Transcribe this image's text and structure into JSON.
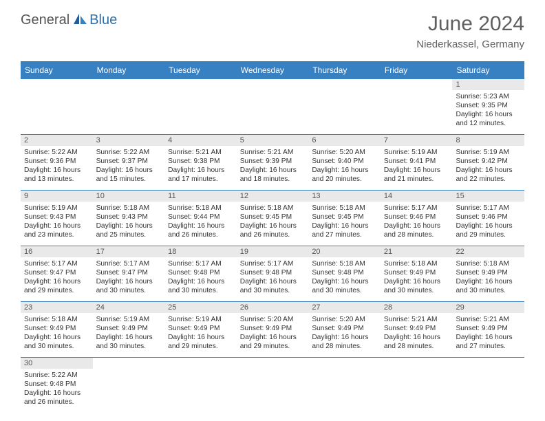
{
  "logo": {
    "text1": "General",
    "text2": "Blue"
  },
  "title": "June 2024",
  "subtitle": "Niederkassel, Germany",
  "colors": {
    "header_bg": "#3780c2",
    "header_text": "#ffffff",
    "daynum_bg": "#e9e9e9",
    "border": "#3780c2",
    "logo_gray": "#555555",
    "logo_blue": "#2f6fa8"
  },
  "weekdays": [
    "Sunday",
    "Monday",
    "Tuesday",
    "Wednesday",
    "Thursday",
    "Friday",
    "Saturday"
  ],
  "weeks": [
    {
      "nums": [
        "",
        "",
        "",
        "",
        "",
        "",
        "1"
      ],
      "cells": [
        null,
        null,
        null,
        null,
        null,
        null,
        {
          "sunrise": "Sunrise: 5:23 AM",
          "sunset": "Sunset: 9:35 PM",
          "daylight1": "Daylight: 16 hours",
          "daylight2": "and 12 minutes."
        }
      ]
    },
    {
      "nums": [
        "2",
        "3",
        "4",
        "5",
        "6",
        "7",
        "8"
      ],
      "cells": [
        {
          "sunrise": "Sunrise: 5:22 AM",
          "sunset": "Sunset: 9:36 PM",
          "daylight1": "Daylight: 16 hours",
          "daylight2": "and 13 minutes."
        },
        {
          "sunrise": "Sunrise: 5:22 AM",
          "sunset": "Sunset: 9:37 PM",
          "daylight1": "Daylight: 16 hours",
          "daylight2": "and 15 minutes."
        },
        {
          "sunrise": "Sunrise: 5:21 AM",
          "sunset": "Sunset: 9:38 PM",
          "daylight1": "Daylight: 16 hours",
          "daylight2": "and 17 minutes."
        },
        {
          "sunrise": "Sunrise: 5:21 AM",
          "sunset": "Sunset: 9:39 PM",
          "daylight1": "Daylight: 16 hours",
          "daylight2": "and 18 minutes."
        },
        {
          "sunrise": "Sunrise: 5:20 AM",
          "sunset": "Sunset: 9:40 PM",
          "daylight1": "Daylight: 16 hours",
          "daylight2": "and 20 minutes."
        },
        {
          "sunrise": "Sunrise: 5:19 AM",
          "sunset": "Sunset: 9:41 PM",
          "daylight1": "Daylight: 16 hours",
          "daylight2": "and 21 minutes."
        },
        {
          "sunrise": "Sunrise: 5:19 AM",
          "sunset": "Sunset: 9:42 PM",
          "daylight1": "Daylight: 16 hours",
          "daylight2": "and 22 minutes."
        }
      ]
    },
    {
      "nums": [
        "9",
        "10",
        "11",
        "12",
        "13",
        "14",
        "15"
      ],
      "cells": [
        {
          "sunrise": "Sunrise: 5:19 AM",
          "sunset": "Sunset: 9:43 PM",
          "daylight1": "Daylight: 16 hours",
          "daylight2": "and 23 minutes."
        },
        {
          "sunrise": "Sunrise: 5:18 AM",
          "sunset": "Sunset: 9:43 PM",
          "daylight1": "Daylight: 16 hours",
          "daylight2": "and 25 minutes."
        },
        {
          "sunrise": "Sunrise: 5:18 AM",
          "sunset": "Sunset: 9:44 PM",
          "daylight1": "Daylight: 16 hours",
          "daylight2": "and 26 minutes."
        },
        {
          "sunrise": "Sunrise: 5:18 AM",
          "sunset": "Sunset: 9:45 PM",
          "daylight1": "Daylight: 16 hours",
          "daylight2": "and 26 minutes."
        },
        {
          "sunrise": "Sunrise: 5:18 AM",
          "sunset": "Sunset: 9:45 PM",
          "daylight1": "Daylight: 16 hours",
          "daylight2": "and 27 minutes."
        },
        {
          "sunrise": "Sunrise: 5:17 AM",
          "sunset": "Sunset: 9:46 PM",
          "daylight1": "Daylight: 16 hours",
          "daylight2": "and 28 minutes."
        },
        {
          "sunrise": "Sunrise: 5:17 AM",
          "sunset": "Sunset: 9:46 PM",
          "daylight1": "Daylight: 16 hours",
          "daylight2": "and 29 minutes."
        }
      ]
    },
    {
      "nums": [
        "16",
        "17",
        "18",
        "19",
        "20",
        "21",
        "22"
      ],
      "cells": [
        {
          "sunrise": "Sunrise: 5:17 AM",
          "sunset": "Sunset: 9:47 PM",
          "daylight1": "Daylight: 16 hours",
          "daylight2": "and 29 minutes."
        },
        {
          "sunrise": "Sunrise: 5:17 AM",
          "sunset": "Sunset: 9:47 PM",
          "daylight1": "Daylight: 16 hours",
          "daylight2": "and 30 minutes."
        },
        {
          "sunrise": "Sunrise: 5:17 AM",
          "sunset": "Sunset: 9:48 PM",
          "daylight1": "Daylight: 16 hours",
          "daylight2": "and 30 minutes."
        },
        {
          "sunrise": "Sunrise: 5:17 AM",
          "sunset": "Sunset: 9:48 PM",
          "daylight1": "Daylight: 16 hours",
          "daylight2": "and 30 minutes."
        },
        {
          "sunrise": "Sunrise: 5:18 AM",
          "sunset": "Sunset: 9:48 PM",
          "daylight1": "Daylight: 16 hours",
          "daylight2": "and 30 minutes."
        },
        {
          "sunrise": "Sunrise: 5:18 AM",
          "sunset": "Sunset: 9:49 PM",
          "daylight1": "Daylight: 16 hours",
          "daylight2": "and 30 minutes."
        },
        {
          "sunrise": "Sunrise: 5:18 AM",
          "sunset": "Sunset: 9:49 PM",
          "daylight1": "Daylight: 16 hours",
          "daylight2": "and 30 minutes."
        }
      ]
    },
    {
      "nums": [
        "23",
        "24",
        "25",
        "26",
        "27",
        "28",
        "29"
      ],
      "cells": [
        {
          "sunrise": "Sunrise: 5:18 AM",
          "sunset": "Sunset: 9:49 PM",
          "daylight1": "Daylight: 16 hours",
          "daylight2": "and 30 minutes."
        },
        {
          "sunrise": "Sunrise: 5:19 AM",
          "sunset": "Sunset: 9:49 PM",
          "daylight1": "Daylight: 16 hours",
          "daylight2": "and 30 minutes."
        },
        {
          "sunrise": "Sunrise: 5:19 AM",
          "sunset": "Sunset: 9:49 PM",
          "daylight1": "Daylight: 16 hours",
          "daylight2": "and 29 minutes."
        },
        {
          "sunrise": "Sunrise: 5:20 AM",
          "sunset": "Sunset: 9:49 PM",
          "daylight1": "Daylight: 16 hours",
          "daylight2": "and 29 minutes."
        },
        {
          "sunrise": "Sunrise: 5:20 AM",
          "sunset": "Sunset: 9:49 PM",
          "daylight1": "Daylight: 16 hours",
          "daylight2": "and 28 minutes."
        },
        {
          "sunrise": "Sunrise: 5:21 AM",
          "sunset": "Sunset: 9:49 PM",
          "daylight1": "Daylight: 16 hours",
          "daylight2": "and 28 minutes."
        },
        {
          "sunrise": "Sunrise: 5:21 AM",
          "sunset": "Sunset: 9:49 PM",
          "daylight1": "Daylight: 16 hours",
          "daylight2": "and 27 minutes."
        }
      ]
    },
    {
      "nums": [
        "30",
        "",
        "",
        "",
        "",
        "",
        ""
      ],
      "cells": [
        {
          "sunrise": "Sunrise: 5:22 AM",
          "sunset": "Sunset: 9:48 PM",
          "daylight1": "Daylight: 16 hours",
          "daylight2": "and 26 minutes."
        },
        null,
        null,
        null,
        null,
        null,
        null
      ]
    }
  ]
}
